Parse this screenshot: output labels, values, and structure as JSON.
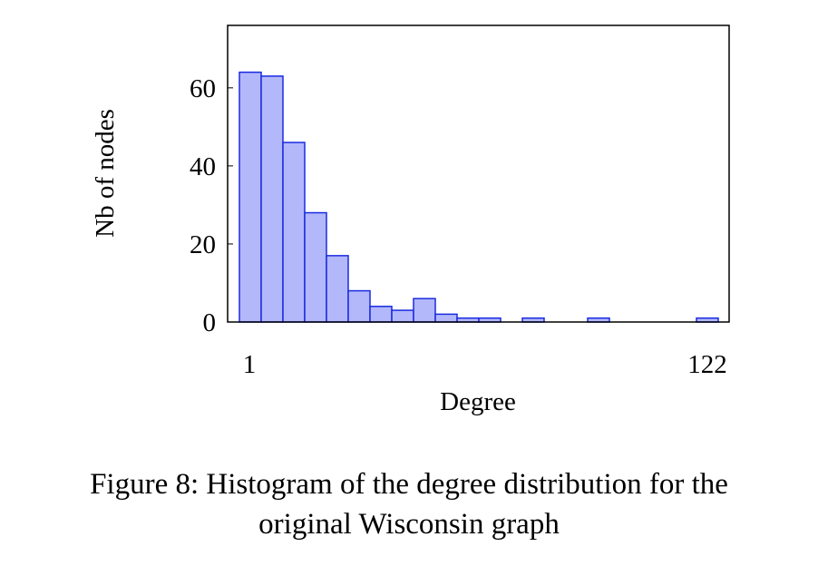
{
  "chart_data": {
    "type": "bar",
    "title": "",
    "xlabel": "Degree",
    "ylabel": "Nb of nodes",
    "x_ticks": [
      "1",
      "122"
    ],
    "x_range": [
      1,
      122
    ],
    "y_ticks": [
      0,
      20,
      40,
      60
    ],
    "ylim": [
      0,
      76
    ],
    "grid": false,
    "bar_fill": "#b3b8fa",
    "bar_stroke": "#1a2be0",
    "values": [
      64,
      63,
      46,
      28,
      17,
      8,
      4,
      3,
      6,
      2,
      1,
      1,
      0,
      1,
      0,
      0,
      1,
      0,
      0,
      0,
      0,
      1
    ]
  },
  "caption": {
    "line1": "Figure 8: Histogram of the degree distribution for the",
    "line2": "original Wisconsin graph"
  }
}
